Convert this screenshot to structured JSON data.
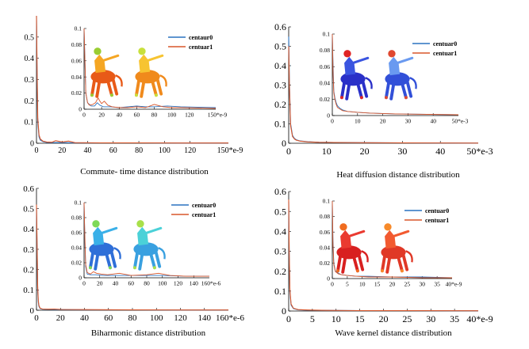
{
  "colors": {
    "centaur0": "#2a72c0",
    "centaur1": "#d9562a",
    "axis": "#000000"
  },
  "chart_data": [
    {
      "type": "line",
      "caption": "Commute-  time distance distribution",
      "x_unit_label": "150*e-9",
      "x_ticks": [
        "0",
        "20",
        "40",
        "60",
        "80",
        "100",
        "120"
      ],
      "y_ticks": [
        "0",
        "0.1",
        "0.2",
        "0.3",
        "0.4",
        "0.5"
      ],
      "xlim": [
        0,
        150
      ],
      "ylim": [
        0,
        0.6
      ],
      "series": [
        {
          "name": "centaur0",
          "x": [
            0,
            0.5,
            1,
            2,
            3,
            5,
            8,
            12,
            20,
            30,
            50,
            80,
            110,
            150
          ],
          "y": [
            0.6,
            0.3,
            0.1,
            0.03,
            0.015,
            0.008,
            0.004,
            0.003,
            0.003,
            0.002,
            0.002,
            0.002,
            0.001,
            0.001
          ]
        },
        {
          "name": "centuar1",
          "x": [
            0,
            0.5,
            1,
            2,
            3,
            5,
            8,
            12,
            15,
            20,
            25,
            30,
            50,
            80,
            110,
            150
          ],
          "y": [
            0.6,
            0.35,
            0.12,
            0.04,
            0.02,
            0.01,
            0.006,
            0.005,
            0.012,
            0.006,
            0.01,
            0.003,
            0.002,
            0.002,
            0.001,
            0.001
          ]
        }
      ],
      "inset": {
        "x_unit_label": "150*e-9",
        "x_ticks": [
          "0",
          "20",
          "40",
          "60",
          "80",
          "100",
          "120"
        ],
        "y_ticks": [
          "0",
          "0.02",
          "0.04",
          "0.06",
          "0.08",
          "0.1"
        ],
        "xlim": [
          0,
          150
        ],
        "ylim": [
          0,
          0.1
        ],
        "series": [
          {
            "name": "centaur0",
            "x": [
              0,
              1,
              2,
              4,
              8,
              12,
              15,
              18,
              22,
              30,
              40,
              50,
              60,
              70,
              80,
              95,
              110,
              150
            ],
            "y": [
              0.1,
              0.06,
              0.02,
              0.008,
              0.004,
              0.004,
              0.008,
              0.005,
              0.003,
              0.003,
              0.002,
              0.003,
              0.004,
              0.003,
              0.003,
              0.004,
              0.003,
              0.002
            ]
          },
          {
            "name": "centuar1",
            "x": [
              0,
              1,
              2,
              4,
              6,
              10,
              13,
              16,
              18,
              20,
              23,
              27,
              32,
              40,
              50,
              60,
              70,
              80,
              90,
              100,
              110,
              150
            ],
            "y": [
              0.1,
              0.06,
              0.02,
              0.008,
              0.005,
              0.006,
              0.008,
              0.014,
              0.01,
              0.007,
              0.01,
              0.005,
              0.003,
              0.002,
              0.002,
              0.003,
              0.002,
              0.006,
              0.003,
              0.002,
              0.002,
              0.001
            ]
          }
        ]
      }
    },
    {
      "type": "line",
      "caption": "Heat diffusion distance distribution",
      "x_unit_label": "50*e-3",
      "x_ticks": [
        "0",
        "10",
        "20",
        "30",
        "40"
      ],
      "y_ticks": [
        "0",
        "0.1",
        "0.2",
        "0.3",
        "0.4",
        "0.5",
        "0.6"
      ],
      "xlim": [
        0,
        50
      ],
      "ylim": [
        0,
        0.6
      ],
      "series": [
        {
          "name": "centuar0",
          "x": [
            0,
            0.2,
            0.5,
            1,
            1.5,
            2,
            3,
            5,
            8,
            12,
            20,
            30,
            50
          ],
          "y": [
            0.55,
            0.3,
            0.1,
            0.04,
            0.025,
            0.018,
            0.012,
            0.008,
            0.005,
            0.004,
            0.003,
            0.002,
            0.001
          ]
        },
        {
          "name": "centuar1",
          "x": [
            0,
            0.2,
            0.5,
            1,
            1.5,
            2,
            3,
            5,
            8,
            12,
            20,
            30,
            50
          ],
          "y": [
            0.5,
            0.28,
            0.09,
            0.035,
            0.022,
            0.016,
            0.011,
            0.007,
            0.005,
            0.004,
            0.003,
            0.002,
            0.001
          ]
        }
      ],
      "inset": {
        "x_unit_label": "50*e-3",
        "x_ticks": [
          "0",
          "10",
          "20",
          "30",
          "40"
        ],
        "y_ticks": [
          "0",
          "0.02",
          "0.04",
          "0.06",
          "0.08",
          "0.1"
        ],
        "xlim": [
          0,
          50
        ],
        "ylim": [
          0,
          0.1
        ],
        "series": [
          {
            "name": "centuar0",
            "x": [
              0,
              0.3,
              0.6,
              1,
              1.5,
              2,
              3,
              4,
              6,
              10,
              15,
              25,
              50
            ],
            "y": [
              0.1,
              0.06,
              0.03,
              0.022,
              0.016,
              0.012,
              0.009,
              0.007,
              0.005,
              0.004,
              0.003,
              0.002,
              0.001
            ]
          },
          {
            "name": "centuar1",
            "x": [
              0,
              0.3,
              0.6,
              1,
              1.5,
              2,
              3,
              4,
              6,
              10,
              15,
              25,
              50
            ],
            "y": [
              0.1,
              0.05,
              0.028,
              0.02,
              0.014,
              0.01,
              0.008,
              0.006,
              0.005,
              0.004,
              0.003,
              0.002,
              0.001
            ]
          }
        ]
      }
    },
    {
      "type": "line",
      "caption": "Biharmonic   distance distribution",
      "x_unit_label": "160*e-6",
      "x_ticks": [
        "0",
        "20",
        "40",
        "60",
        "80",
        "100",
        "120",
        "140"
      ],
      "y_ticks": [
        "0",
        "0.1",
        "0.2",
        "0.3",
        "0.4",
        "0.5",
        "0.6"
      ],
      "xlim": [
        0,
        160
      ],
      "ylim": [
        0,
        0.6
      ],
      "series": [
        {
          "name": "centuar0",
          "x": [
            0,
            0.5,
            1,
            1.5,
            2,
            3,
            5,
            10,
            20,
            40,
            80,
            120,
            160
          ],
          "y": [
            0.5,
            0.3,
            0.1,
            0.04,
            0.02,
            0.008,
            0.005,
            0.004,
            0.003,
            0.002,
            0.002,
            0.001,
            0.001
          ]
        },
        {
          "name": "centuar1",
          "x": [
            0,
            0.5,
            1,
            1.5,
            2,
            3,
            5,
            10,
            15,
            20,
            40,
            80,
            120,
            160
          ],
          "y": [
            0.52,
            0.32,
            0.12,
            0.05,
            0.025,
            0.01,
            0.006,
            0.005,
            0.006,
            0.004,
            0.003,
            0.002,
            0.001,
            0.001
          ]
        }
      ],
      "inset": {
        "x_unit_label": "160*e-6",
        "x_ticks": [
          "0",
          "20",
          "40",
          "60",
          "80",
          "100",
          "120",
          "140"
        ],
        "y_ticks": [
          "0",
          "0.02",
          "0.04",
          "0.06",
          "0.08",
          "0.1"
        ],
        "xlim": [
          0,
          160
        ],
        "ylim": [
          0,
          0.1
        ],
        "series": [
          {
            "name": "centuar0",
            "x": [
              0,
              1,
              2,
              4,
              8,
              15,
              25,
              40,
              60,
              80,
              100,
              130,
              160
            ],
            "y": [
              0.1,
              0.05,
              0.015,
              0.005,
              0.004,
              0.004,
              0.003,
              0.003,
              0.003,
              0.003,
              0.003,
              0.002,
              0.002
            ]
          },
          {
            "name": "centuar1",
            "x": [
              0,
              1,
              2,
              4,
              8,
              12,
              16,
              22,
              30,
              45,
              60,
              80,
              95,
              110,
              130,
              160
            ],
            "y": [
              0.1,
              0.055,
              0.018,
              0.007,
              0.005,
              0.008,
              0.006,
              0.005,
              0.004,
              0.006,
              0.003,
              0.004,
              0.006,
              0.003,
              0.002,
              0.002
            ]
          }
        ]
      }
    },
    {
      "type": "line",
      "caption": "Wave kernel distance distribution",
      "x_unit_label": "40*e-9",
      "x_ticks": [
        "0",
        "5",
        "10",
        "15",
        "20",
        "25",
        "30",
        "35"
      ],
      "y_ticks": [
        "0",
        "0.1",
        "0.2",
        "0.3",
        "0.4",
        "0.5",
        "0.6"
      ],
      "xlim": [
        0,
        40
      ],
      "ylim": [
        0,
        0.6
      ],
      "series": [
        {
          "name": "centuar0",
          "x": [
            0,
            0.1,
            0.25,
            0.5,
            1,
            2,
            4,
            8,
            15,
            25,
            40
          ],
          "y": [
            0.55,
            0.3,
            0.1,
            0.03,
            0.012,
            0.006,
            0.004,
            0.003,
            0.002,
            0.002,
            0.001
          ]
        },
        {
          "name": "centuar1",
          "x": [
            0,
            0.1,
            0.25,
            0.5,
            1,
            2,
            4,
            8,
            15,
            25,
            40
          ],
          "y": [
            0.56,
            0.32,
            0.11,
            0.035,
            0.014,
            0.007,
            0.005,
            0.003,
            0.002,
            0.002,
            0.001
          ]
        }
      ],
      "inset": {
        "x_unit_label": "40*e-9",
        "x_ticks": [
          "0",
          "5",
          "10",
          "15",
          "20",
          "25",
          "30",
          "35"
        ],
        "y_ticks": [
          "0",
          "0.02",
          "0.04",
          "0.06",
          "0.08",
          "0.1"
        ],
        "xlim": [
          0,
          40
        ],
        "ylim": [
          0,
          0.1
        ],
        "series": [
          {
            "name": "centuar0",
            "x": [
              0,
              0.2,
              0.5,
              1,
              2,
              3,
              5,
              8,
              12,
              20,
              30,
              40
            ],
            "y": [
              0.1,
              0.05,
              0.02,
              0.01,
              0.007,
              0.005,
              0.004,
              0.003,
              0.003,
              0.002,
              0.002,
              0.001
            ]
          },
          {
            "name": "centuar1",
            "x": [
              0,
              0.2,
              0.5,
              1,
              2,
              3,
              5,
              8,
              12,
              20,
              30,
              40
            ],
            "y": [
              0.1,
              0.045,
              0.018,
              0.009,
              0.006,
              0.005,
              0.004,
              0.003,
              0.002,
              0.002,
              0.001,
              0.001
            ]
          }
        ]
      }
    }
  ]
}
